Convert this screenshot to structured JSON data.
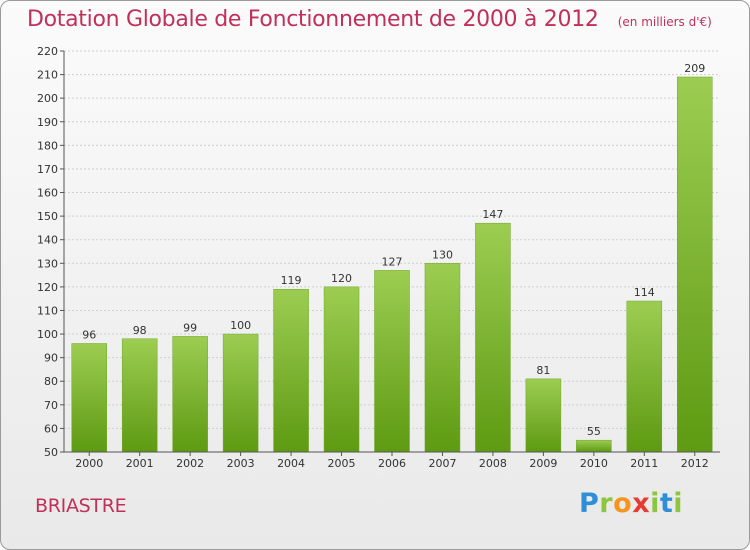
{
  "title": "Dotation Globale de Fonctionnement de 2000 à 2012",
  "subtitle": "(en milliers d'€)",
  "commune": "BRIASTRE",
  "brand": {
    "letters": [
      "P",
      "r",
      "o",
      "x",
      "i",
      "t",
      "i"
    ],
    "colors": [
      "#2e8fd8",
      "#8cc63f",
      "#f7941d",
      "#e63c2f",
      "#8cc63f",
      "#2e8fd8",
      "#8cc63f"
    ]
  },
  "colors": {
    "title": "#c0305a",
    "bar_top": "#9ccd52",
    "bar_bottom": "#5e9a12",
    "grid": "#cfcfcf",
    "axis": "#555555"
  },
  "chart_data": {
    "type": "bar",
    "title": "Dotation Globale de Fonctionnement de 2000 à 2012",
    "subtitle": "(en milliers d'€)",
    "categories": [
      "2000",
      "2001",
      "2002",
      "2003",
      "2004",
      "2005",
      "2006",
      "2007",
      "2008",
      "2009",
      "2010",
      "2011",
      "2012"
    ],
    "values": [
      96,
      98,
      99,
      100,
      119,
      120,
      127,
      130,
      147,
      81,
      55,
      114,
      209
    ],
    "ylim": [
      50,
      220
    ],
    "yticks": [
      50,
      60,
      70,
      80,
      90,
      100,
      110,
      120,
      130,
      140,
      150,
      160,
      170,
      180,
      190,
      200,
      210,
      220
    ],
    "grid": true,
    "data_labels": true
  }
}
